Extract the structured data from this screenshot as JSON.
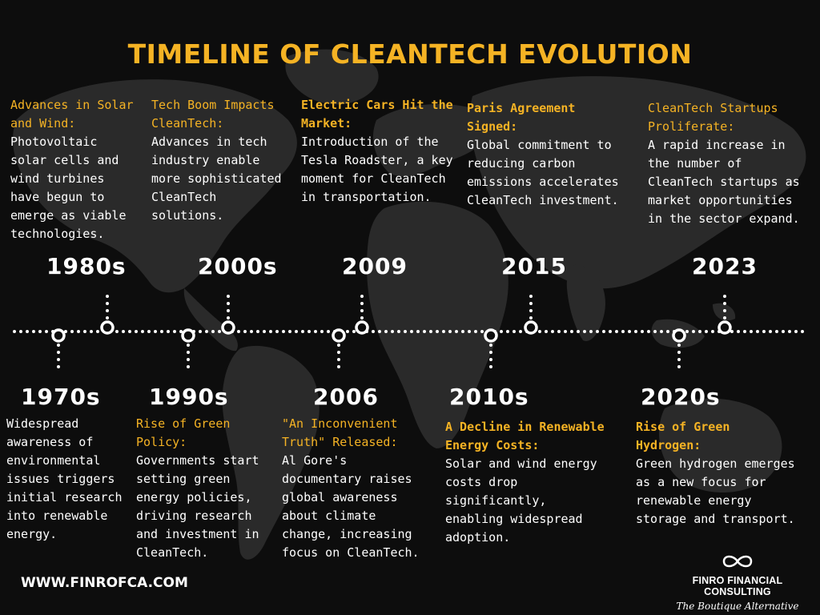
{
  "title": "TIMELINE OF CLEANTECH EVOLUTION",
  "colors": {
    "accent": "#f5b324",
    "background": "#0d0d0d",
    "text": "#ffffff"
  },
  "top_events": [
    {
      "year": "1980s",
      "heading": "Advances in Solar and Wind:",
      "body": "Photovoltaic solar cells and wind turbines have begun to emerge as viable technologies."
    },
    {
      "year": "2000s",
      "heading": "Tech Boom Impacts CleanTech:",
      "body": "Advances in tech industry enable more sophisticated CleanTech solutions."
    },
    {
      "year": "2009",
      "heading": "Electric Cars Hit the Market:",
      "body": "Introduction of the Tesla Roadster, a key moment for CleanTech in transportation."
    },
    {
      "year": "2015",
      "heading": "Paris Agreement Signed:",
      "body": "Global commitment to reducing carbon emissions accelerates CleanTech investment."
    },
    {
      "year": "2023",
      "heading": "CleanTech Startups Proliferate:",
      "body": "A rapid increase in the number of CleanTech startups as market opportunities in the sector expand."
    }
  ],
  "bottom_events": [
    {
      "year": "1970s",
      "heading": "",
      "body": "Widespread awareness of environmental issues triggers initial research into renewable energy."
    },
    {
      "year": "1990s",
      "heading": "Rise of Green Policy:",
      "body": "Governments start setting green energy policies, driving research and investment in CleanTech."
    },
    {
      "year": "2006",
      "heading": "\"An Inconvenient Truth\" Released:",
      "body": "Al Gore's documentary raises global awareness about climate change, increasing focus on CleanTech."
    },
    {
      "year": "2010s",
      "heading": "A Decline in Renewable Energy Costs:",
      "body": "Solar and wind energy costs drop significantly, enabling widespread adoption."
    },
    {
      "year": "2020s",
      "heading": "Rise of Green Hydrogen:",
      "body": "Green hydrogen emerges as a new focus for renewable energy storage and transport."
    }
  ],
  "footer": {
    "website": "WWW.FINROFCA.COM",
    "brand_name": "FINRO FINANCIAL CONSULTING",
    "tagline": "The Boutique Alternative",
    "logo_icon": "infinity-icon"
  }
}
